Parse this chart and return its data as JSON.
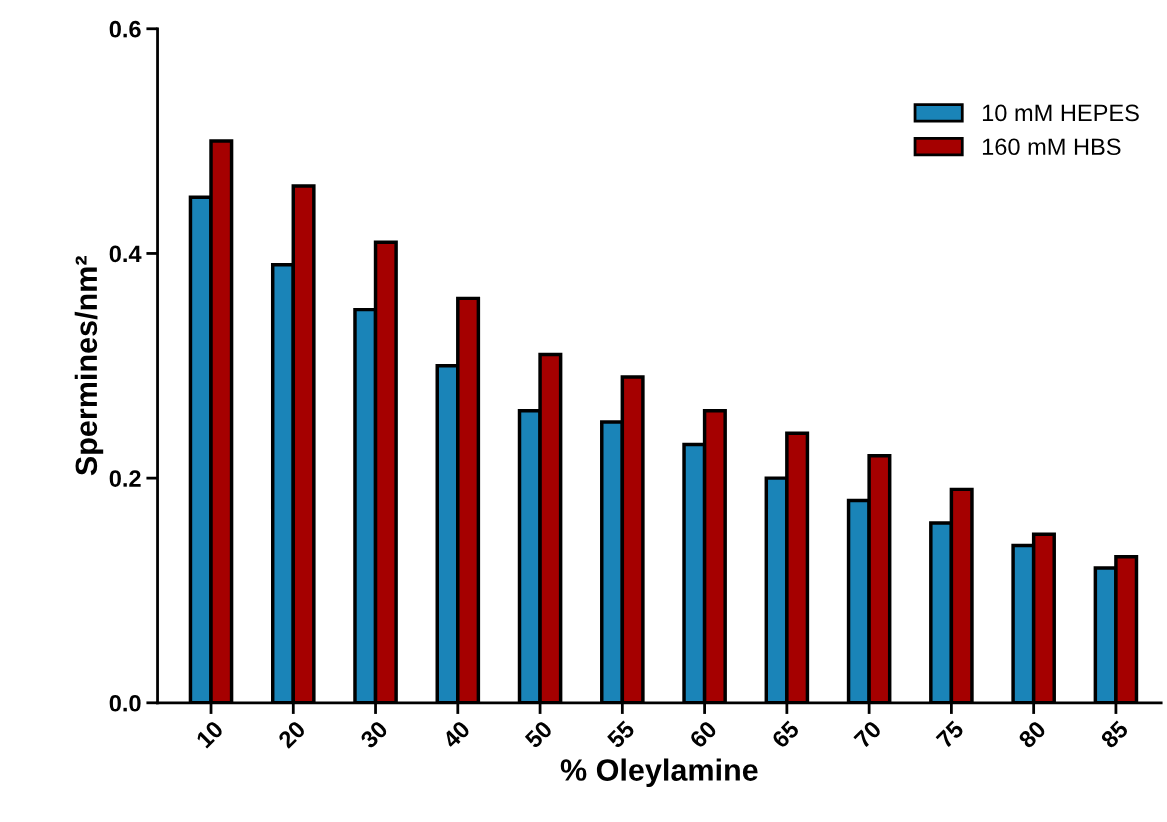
{
  "chart_data": {
    "type": "bar",
    "xlabel": "% Oleylamine",
    "ylabel": "Spermines/nm²",
    "categories": [
      "10",
      "20",
      "30",
      "40",
      "50",
      "55",
      "60",
      "65",
      "70",
      "75",
      "80",
      "85"
    ],
    "series": [
      {
        "name": "10 mM HEPES",
        "color": "#1a84b8",
        "values": [
          0.45,
          0.39,
          0.35,
          0.3,
          0.26,
          0.25,
          0.23,
          0.2,
          0.18,
          0.16,
          0.14,
          0.12
        ]
      },
      {
        "name": "160 mM HBS",
        "color": "#a50000",
        "values": [
          0.5,
          0.46,
          0.41,
          0.36,
          0.31,
          0.29,
          0.26,
          0.24,
          0.22,
          0.19,
          0.15,
          0.13
        ]
      }
    ],
    "ylim": [
      0,
      0.6
    ],
    "yticks": [
      {
        "value": 0,
        "label": "0.0"
      },
      {
        "value": 0.2,
        "label": "0.2"
      },
      {
        "value": 0.4,
        "label": "0.4"
      },
      {
        "value": 0.6,
        "label": "0.6"
      }
    ],
    "grid": false,
    "legend": "top right"
  }
}
